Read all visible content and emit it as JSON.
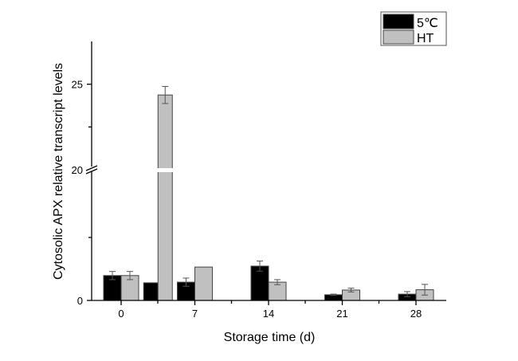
{
  "chart_data": {
    "type": "bar",
    "title": "",
    "xlabel": "Storage time (d)",
    "ylabel": "Cytosolic APX relative transcript levels",
    "x_tick_labels": [
      "0",
      "7",
      "14",
      "21",
      "28"
    ],
    "y_tick_labels": [
      "0",
      "20",
      "25"
    ],
    "y_axis_break": {
      "lower_range": [
        0,
        4.1
      ],
      "upper_range": [
        20,
        27.5
      ]
    },
    "grid": false,
    "legend_position": "top-right",
    "x": [
      0,
      3.5,
      7,
      14,
      21,
      28
    ],
    "series": [
      {
        "name": "5℃",
        "color": "#000000",
        "values": [
          0.79,
          0.56,
          0.58,
          1.09,
          0.18,
          0.2
        ],
        "errors": [
          0.13,
          0,
          0.13,
          0.16,
          0.02,
          0.08
        ]
      },
      {
        "name": "HT",
        "color": "#c0c0c0",
        "values": [
          0.79,
          24.37,
          1.06,
          0.58,
          0.33,
          0.34
        ],
        "errors": [
          0.13,
          0.5,
          0,
          0.08,
          0.06,
          0.17
        ]
      }
    ]
  }
}
